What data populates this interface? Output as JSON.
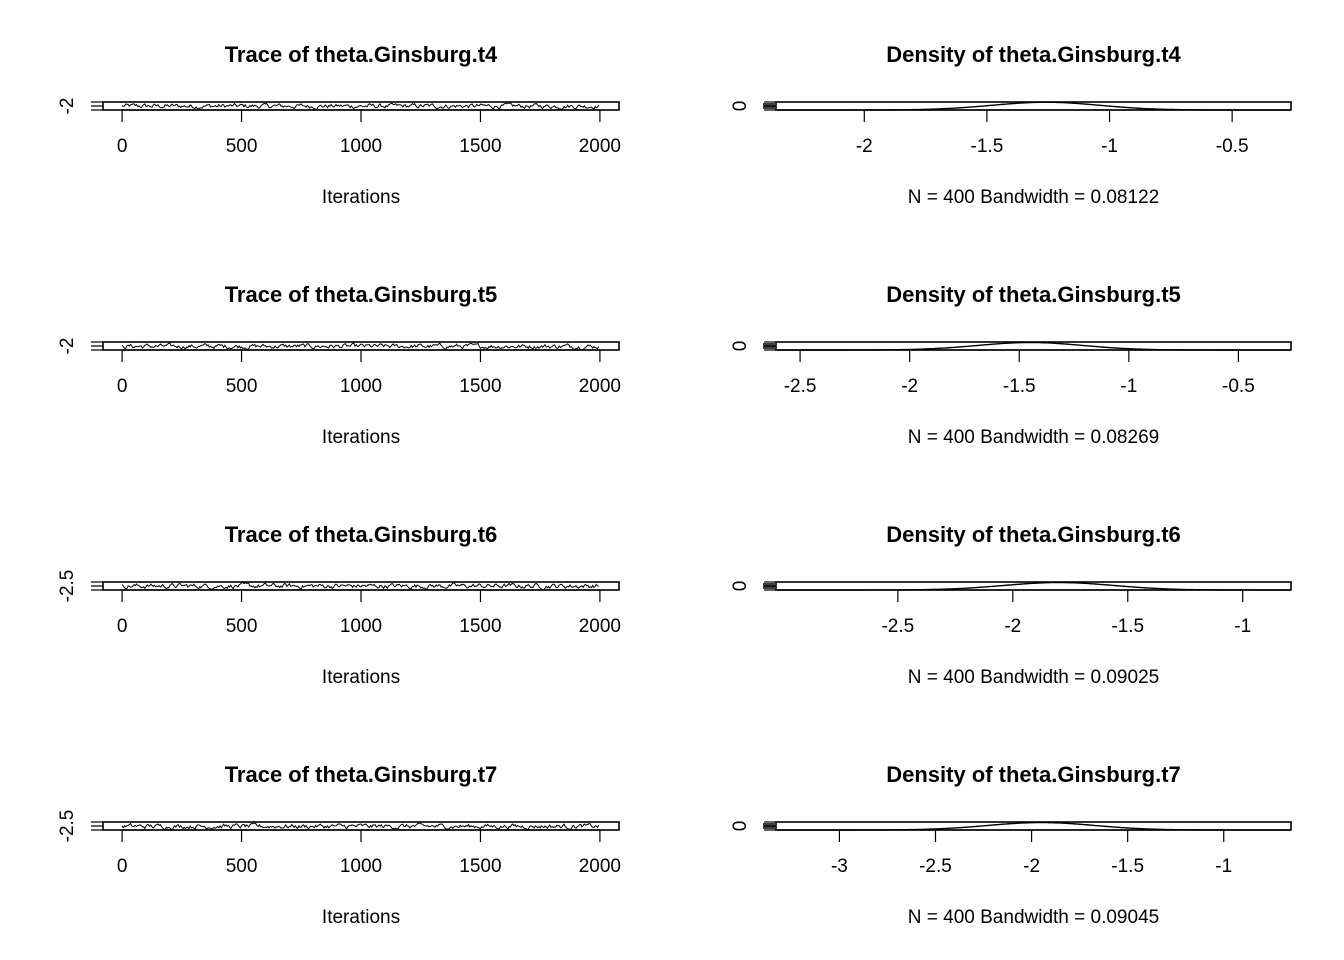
{
  "chart_data": [
    {
      "type": "line",
      "title": "Trace of theta.Ginsburg.t4",
      "xlabel": "Iterations",
      "ylabel": "",
      "xlim": [
        -80,
        2080
      ],
      "ylim": [
        -2.15,
        -0.4
      ],
      "x_ticks": [
        0,
        500,
        1000,
        1500,
        2000
      ],
      "y_ticks": [
        -2.0
      ],
      "series": [
        {
          "x_start": 0,
          "x_step": 5,
          "n": 400,
          "values_range": [
            -2.05,
            -0.55
          ]
        }
      ]
    },
    {
      "type": "line",
      "title": "Density of theta.Ginsburg.t4",
      "xlabel": "N = 400   Bandwidth = 0.08122",
      "ylabel": "",
      "xlim": [
        -2.36,
        -0.26
      ],
      "ylim": [
        0.0,
        1.6
      ],
      "x_ticks": [
        -2.0,
        -1.5,
        -1.0,
        -0.5
      ],
      "y_ticks": [
        0.0
      ],
      "series": [
        {
          "peak_x": -1.26,
          "peak_y": 1.55,
          "sd": 0.22
        }
      ]
    },
    {
      "type": "line",
      "title": "Trace of theta.Ginsburg.t5",
      "xlabel": "Iterations",
      "ylabel": "",
      "xlim": [
        -80,
        2080
      ],
      "ylim": [
        -2.25,
        -0.5
      ],
      "x_ticks": [
        0,
        500,
        1000,
        1500,
        2000
      ],
      "y_ticks": [
        -2.0
      ],
      "series": [
        {
          "x_start": 0,
          "x_step": 5,
          "n": 400,
          "values_range": [
            -2.2,
            -0.7
          ]
        }
      ]
    },
    {
      "type": "line",
      "title": "Density of theta.Ginsburg.t5",
      "xlabel": "N = 400   Bandwidth = 0.08269",
      "ylabel": "",
      "xlim": [
        -2.61,
        -0.26
      ],
      "ylim": [
        0.0,
        1.6
      ],
      "x_ticks": [
        -2.5,
        -2.0,
        -1.5,
        -1.0,
        -0.5
      ],
      "y_ticks": [
        0.0
      ],
      "series": [
        {
          "peak_x": -1.45,
          "peak_y": 1.5,
          "sd": 0.24
        }
      ]
    },
    {
      "type": "line",
      "title": "Trace of theta.Ginsburg.t6",
      "xlabel": "Iterations",
      "ylabel": "",
      "xlim": [
        -80,
        2080
      ],
      "ylim": [
        -2.7,
        -0.9
      ],
      "x_ticks": [
        0,
        500,
        1000,
        1500,
        2000
      ],
      "y_ticks": [
        -2.5
      ],
      "series": [
        {
          "x_start": 0,
          "x_step": 5,
          "n": 400,
          "values_range": [
            -2.6,
            -1.0
          ]
        }
      ]
    },
    {
      "type": "line",
      "title": "Density of theta.Ginsburg.t6",
      "xlabel": "N = 400   Bandwidth = 0.09025",
      "ylabel": "",
      "xlim": [
        -3.03,
        -0.79
      ],
      "ylim": [
        0.0,
        1.5
      ],
      "x_ticks": [
        -2.5,
        -2.0,
        -1.5,
        -1.0
      ],
      "y_ticks": [
        0.0
      ],
      "series": [
        {
          "peak_x": -1.8,
          "peak_y": 1.4,
          "sd": 0.24
        }
      ]
    },
    {
      "type": "line",
      "title": "Trace of theta.Ginsburg.t7",
      "xlabel": "Iterations",
      "ylabel": "",
      "xlim": [
        -80,
        2080
      ],
      "ylim": [
        -2.75,
        -0.9
      ],
      "x_ticks": [
        0,
        500,
        1000,
        1500,
        2000
      ],
      "y_ticks": [
        -2.5
      ],
      "series": [
        {
          "x_start": 0,
          "x_step": 5,
          "n": 400,
          "values_range": [
            -2.7,
            -1.1
          ]
        }
      ]
    },
    {
      "type": "line",
      "title": "Density of theta.Ginsburg.t7",
      "xlabel": "N = 400   Bandwidth = 0.09045",
      "ylabel": "",
      "xlim": [
        -3.33,
        -0.65
      ],
      "ylim": [
        0.0,
        1.4
      ],
      "x_ticks": [
        -3.0,
        -2.5,
        -2.0,
        -1.5,
        -1.0
      ],
      "y_ticks": [
        0.0
      ],
      "series": [
        {
          "peak_x": -1.95,
          "peak_y": 1.3,
          "sd": 0.28
        }
      ]
    }
  ]
}
